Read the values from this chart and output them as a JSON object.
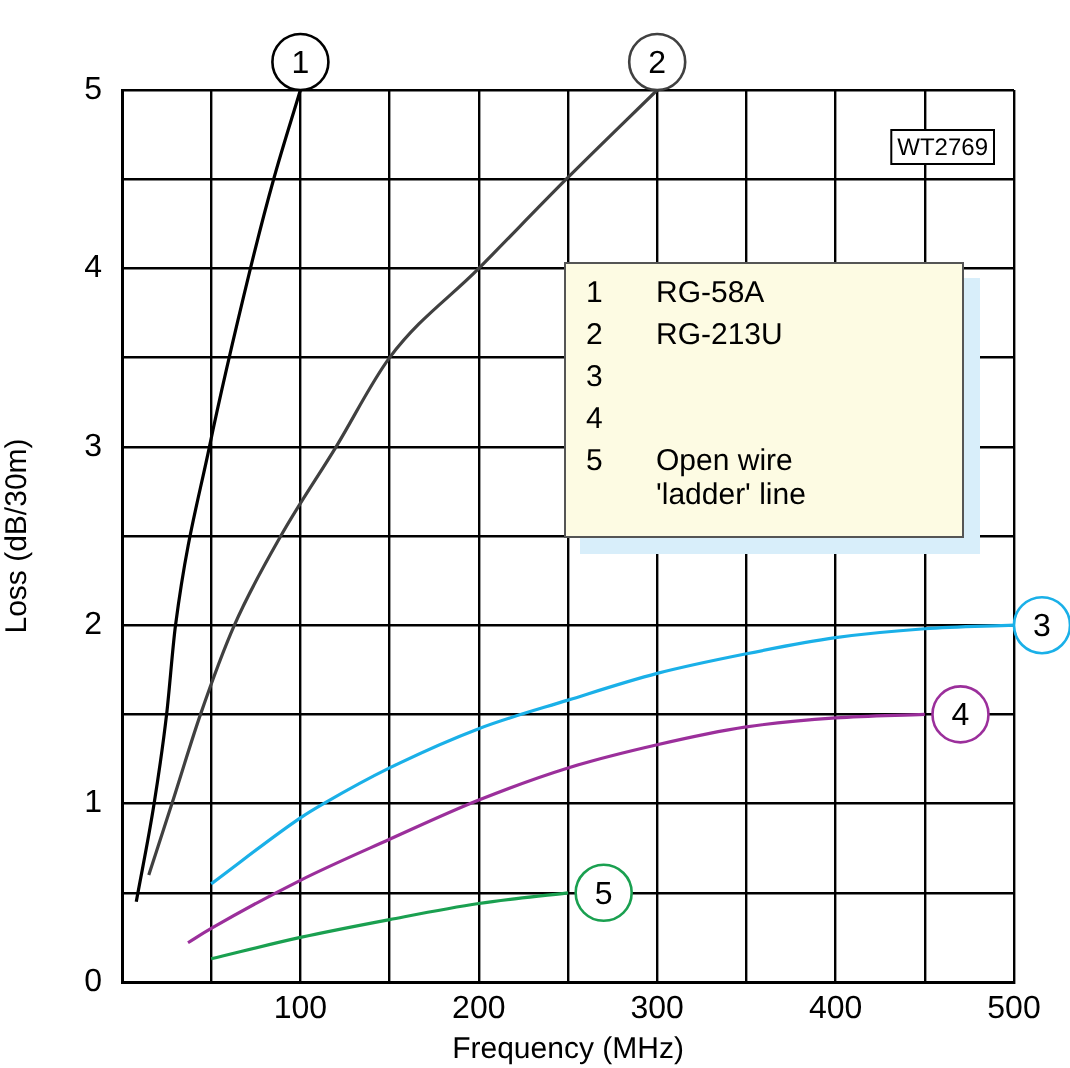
{
  "chart_data": {
    "type": "line",
    "xlabel": "Frequency (MHz)",
    "ylabel": "Loss (dB/30m)",
    "xlim": [
      0,
      500
    ],
    "ylim": [
      0,
      5
    ],
    "xticks": [
      {
        "value": 0,
        "label": null
      },
      {
        "value": 50,
        "label": null
      },
      100,
      {
        "value": 150,
        "label": null
      },
      200,
      {
        "value": 250,
        "label": null
      },
      300,
      {
        "value": 350,
        "label": null
      },
      400,
      {
        "value": 450,
        "label": null
      },
      500
    ],
    "yticks": [
      0,
      {
        "value": 0.5,
        "label": null
      },
      1,
      {
        "value": 1.5,
        "label": null
      },
      2,
      {
        "value": 2.5,
        "label": null
      },
      3,
      {
        "value": 3.5,
        "label": null
      },
      4,
      {
        "value": 4.5,
        "label": null
      },
      5
    ],
    "grid": true,
    "legend": "top right",
    "marker": "none",
    "line_style": "solid",
    "series": [
      {
        "name": "RG-58A",
        "color": "#000000",
        "x": [
          8,
          18,
          25,
          30,
          49,
          72,
          85,
          100
        ],
        "values": [
          0.45,
          1,
          1.5,
          2,
          3,
          4,
          4.5,
          5
        ]
      },
      {
        "name": "RG-213U",
        "color": "#404040",
        "x": [
          15,
          28,
          44,
          63,
          89,
          120,
          150,
          200,
          249,
          300
        ],
        "values": [
          0.6,
          1,
          1.5,
          2,
          2.5,
          3,
          3.5,
          4,
          4.5,
          5
        ]
      },
      {
        "color": "#1ab0e8",
        "x": [
          50,
          100,
          113,
          150,
          200,
          250,
          300,
          350,
          400,
          450,
          500
        ],
        "values": [
          0.55,
          0.92,
          1,
          1.2,
          1.42,
          1.58,
          1.73,
          1.84,
          1.93,
          1.98,
          2.0
        ]
      },
      {
        "color": "#9b2f9b",
        "x": [
          37,
          50,
          100,
          150,
          200,
          250,
          300,
          350,
          400,
          450
        ],
        "values": [
          0.22,
          0.3,
          0.57,
          0.8,
          1.02,
          1.2,
          1.33,
          1.43,
          1.48,
          1.5
        ]
      },
      {
        "name": "Open wire 'ladder' line",
        "color": "#1aa050",
        "x": [
          50,
          100,
          150,
          200,
          250
        ],
        "values": [
          0.13,
          0.25,
          0.35,
          0.44,
          0.5
        ]
      }
    ],
    "annotations": [
      {
        "text": "1",
        "x": 100,
        "y": 5
      },
      {
        "text": "2",
        "x": 300,
        "y": 5
      },
      {
        "text": "3",
        "x": 500,
        "y": 2
      },
      {
        "text": "4",
        "x": 470,
        "y": 1.5
      },
      {
        "text": "5",
        "x": 270,
        "y": 0.5
      },
      "WT2769"
    ]
  }
}
